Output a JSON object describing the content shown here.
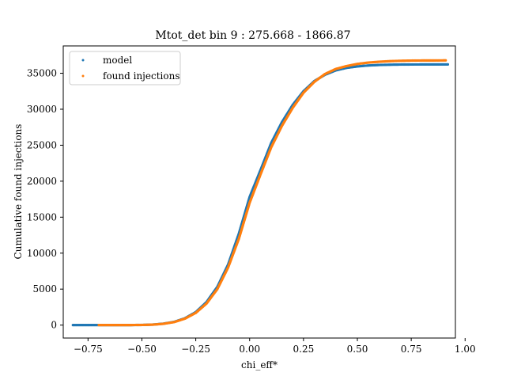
{
  "chart_data": {
    "type": "scatter",
    "title": "Mtot_det bin 9 : 275.668 - 1866.87",
    "xlabel": "chi_eff*",
    "ylabel": "Cumulative found injections",
    "xlim": [
      -0.865,
      0.955
    ],
    "ylim": [
      -1800,
      38800
    ],
    "xticks": [
      -0.75,
      -0.5,
      -0.25,
      0.0,
      0.25,
      0.5,
      0.75,
      1.0
    ],
    "xtick_labels": [
      "−0.75",
      "−0.50",
      "−0.25",
      "0.00",
      "0.25",
      "0.50",
      "0.75",
      "1.00"
    ],
    "yticks": [
      0,
      5000,
      10000,
      15000,
      20000,
      25000,
      30000,
      35000
    ],
    "ytick_labels": [
      "0",
      "5000",
      "10000",
      "15000",
      "20000",
      "25000",
      "30000",
      "35000"
    ],
    "grid": false,
    "legend_position": "upper-left",
    "series": [
      {
        "name": "model",
        "color": "#1f77b4",
        "x": [
          -0.82,
          -0.8,
          -0.78,
          -0.76,
          -0.74,
          -0.72,
          -0.7,
          -0.65,
          -0.6,
          -0.55,
          -0.5,
          -0.45,
          -0.4,
          -0.35,
          -0.3,
          -0.25,
          -0.2,
          -0.15,
          -0.1,
          -0.05,
          0.0,
          0.05,
          0.1,
          0.15,
          0.2,
          0.25,
          0.3,
          0.35,
          0.4,
          0.45,
          0.5,
          0.55,
          0.6,
          0.65,
          0.7,
          0.75,
          0.8,
          0.85,
          0.9,
          0.92
        ],
        "y": [
          0,
          0,
          0,
          0,
          0,
          0,
          0,
          0,
          0,
          5,
          20,
          70,
          200,
          450,
          950,
          1800,
          3200,
          5300,
          8400,
          12700,
          17800,
          21500,
          25300,
          28200,
          30600,
          32500,
          33900,
          34800,
          35400,
          35750,
          35950,
          36080,
          36150,
          36190,
          36210,
          36220,
          36225,
          36228,
          36230,
          36230
        ]
      },
      {
        "name": "found injections",
        "color": "#ff7f0e",
        "x": [
          -0.7,
          -0.67,
          -0.65,
          -0.6,
          -0.55,
          -0.5,
          -0.45,
          -0.4,
          -0.35,
          -0.3,
          -0.25,
          -0.2,
          -0.15,
          -0.1,
          -0.05,
          0.0,
          0.05,
          0.1,
          0.15,
          0.2,
          0.25,
          0.3,
          0.35,
          0.4,
          0.45,
          0.5,
          0.55,
          0.6,
          0.65,
          0.7,
          0.75,
          0.78,
          0.8,
          0.83,
          0.85,
          0.88,
          0.91
        ],
        "y": [
          0,
          0,
          0,
          0,
          5,
          20,
          60,
          180,
          420,
          900,
          1700,
          3000,
          5000,
          8000,
          12000,
          17000,
          20900,
          24700,
          27700,
          30200,
          32300,
          33800,
          34900,
          35600,
          36000,
          36300,
          36480,
          36600,
          36680,
          36730,
          36760,
          36770,
          36775,
          36780,
          36780,
          36785,
          36790
        ]
      }
    ]
  }
}
